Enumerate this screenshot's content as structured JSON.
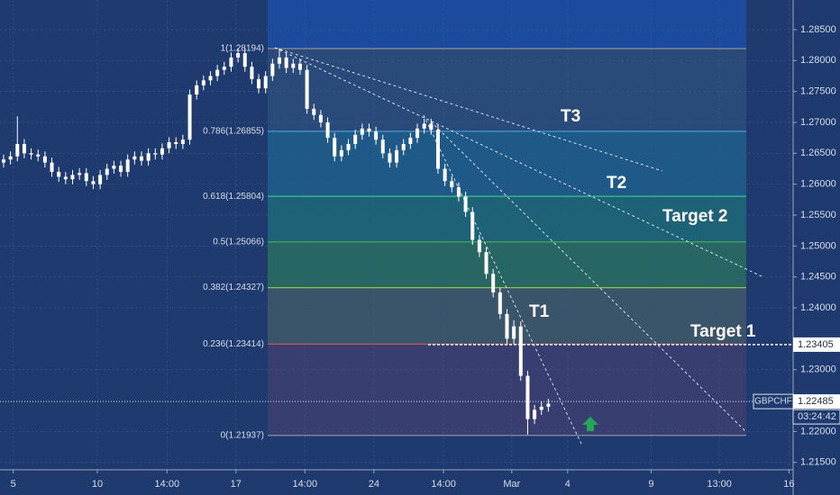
{
  "chart_data": {
    "type": "candlestick",
    "symbol": "GBPCHF",
    "countdown": "03:24:42",
    "candle_color": "#ffffff",
    "open": [
      1.2635,
      1.264,
      1.2645,
      1.2665,
      1.265,
      1.2648,
      1.2645,
      1.2635,
      1.262,
      1.2612,
      1.2608,
      1.2615,
      1.2618,
      1.2605,
      1.26,
      1.2615,
      1.2625,
      1.263,
      1.262,
      1.264,
      1.2645,
      1.2638,
      1.265,
      1.2648,
      1.2658,
      1.2668,
      1.2665,
      1.2672,
      1.2745,
      1.276,
      1.2768,
      1.2775,
      1.2785,
      1.279,
      1.2805,
      1.2812,
      1.279,
      1.277,
      1.2755,
      1.2775,
      1.2795,
      1.2805,
      1.2788,
      1.2795,
      1.2785,
      1.2722,
      1.2712,
      1.27,
      1.2675,
      1.2645,
      1.2655,
      1.2665,
      1.268,
      1.269,
      1.2685,
      1.2672,
      1.265,
      1.2635,
      1.2655,
      1.2665,
      1.2675,
      1.269,
      1.2698,
      1.2688,
      1.2625,
      1.2605,
      1.2595,
      1.258,
      1.2555,
      1.251,
      1.249,
      1.2455,
      1.2425,
      1.239,
      1.235,
      1.237,
      1.229,
      1.222,
      1.2235,
      1.224
    ],
    "high": [
      1.2648,
      1.2653,
      1.271,
      1.2673,
      1.2658,
      1.2656,
      1.2653,
      1.2643,
      1.2628,
      1.262,
      1.2623,
      1.2626,
      1.2626,
      1.2613,
      1.2623,
      1.2633,
      1.2638,
      1.2638,
      1.2648,
      1.2653,
      1.2653,
      1.2658,
      1.2658,
      1.2666,
      1.2676,
      1.2676,
      1.268,
      1.2753,
      1.2768,
      1.2776,
      1.2783,
      1.2793,
      1.2798,
      1.2813,
      1.282,
      1.282,
      1.2798,
      1.2778,
      1.2783,
      1.2803,
      1.28194,
      1.2813,
      1.2803,
      1.2803,
      1.2793,
      1.273,
      1.272,
      1.2708,
      1.2683,
      1.2663,
      1.2673,
      1.2688,
      1.2698,
      1.2698,
      1.2693,
      1.268,
      1.2658,
      1.2663,
      1.2673,
      1.2683,
      1.2698,
      1.2706,
      1.2706,
      1.2696,
      1.2633,
      1.2613,
      1.2603,
      1.2588,
      1.2563,
      1.2518,
      1.2498,
      1.2463,
      1.2433,
      1.2398,
      1.238,
      1.2378,
      1.2298,
      1.2243,
      1.2248,
      1.2253
    ],
    "low": [
      1.2627,
      1.2632,
      1.2637,
      1.2642,
      1.264,
      1.2637,
      1.2627,
      1.2612,
      1.2604,
      1.26,
      1.26,
      1.2607,
      1.2597,
      1.2592,
      1.2592,
      1.2607,
      1.2617,
      1.2612,
      1.2612,
      1.2632,
      1.263,
      1.263,
      1.264,
      1.264,
      1.265,
      1.2657,
      1.2657,
      1.2664,
      1.2737,
      1.2752,
      1.276,
      1.2767,
      1.2777,
      1.2782,
      1.2797,
      1.2782,
      1.2762,
      1.2747,
      1.2747,
      1.2767,
      1.2787,
      1.278,
      1.278,
      1.2777,
      1.2714,
      1.2704,
      1.2692,
      1.2667,
      1.2637,
      1.2637,
      1.2647,
      1.2657,
      1.2672,
      1.2677,
      1.2664,
      1.2642,
      1.2627,
      1.2627,
      1.2647,
      1.2657,
      1.2667,
      1.2682,
      1.268,
      1.2617,
      1.2597,
      1.2587,
      1.2572,
      1.2547,
      1.2502,
      1.2482,
      1.2447,
      1.2417,
      1.2382,
      1.2342,
      1.2342,
      1.2282,
      1.2195,
      1.2212,
      1.2227,
      1.2232
    ],
    "close": [
      1.264,
      1.2645,
      1.2665,
      1.265,
      1.2648,
      1.2645,
      1.2635,
      1.262,
      1.2612,
      1.2608,
      1.2615,
      1.2618,
      1.2605,
      1.26,
      1.2615,
      1.2625,
      1.263,
      1.262,
      1.264,
      1.2645,
      1.2638,
      1.265,
      1.2648,
      1.2658,
      1.2668,
      1.2665,
      1.2672,
      1.2745,
      1.276,
      1.2768,
      1.2775,
      1.2785,
      1.279,
      1.2805,
      1.2812,
      1.279,
      1.277,
      1.2755,
      1.2775,
      1.2795,
      1.2805,
      1.2788,
      1.2795,
      1.2785,
      1.2722,
      1.2712,
      1.27,
      1.2675,
      1.2645,
      1.2655,
      1.2665,
      1.268,
      1.269,
      1.2685,
      1.2672,
      1.265,
      1.2635,
      1.2655,
      1.2665,
      1.2675,
      1.269,
      1.2698,
      1.2688,
      1.2625,
      1.2605,
      1.2595,
      1.258,
      1.2555,
      1.251,
      1.249,
      1.2455,
      1.2425,
      1.239,
      1.235,
      1.237,
      1.229,
      1.222,
      1.2235,
      1.224,
      1.2245
    ],
    "xlim": [
      -0.52,
      114.5
    ],
    "xticks": [
      {
        "value": 1.4,
        "label": "5"
      },
      {
        "value": 13.6,
        "label": "10"
      },
      {
        "value": 23.7,
        "label": "14:00"
      },
      {
        "value": 33.7,
        "label": "17"
      },
      {
        "value": 43.7,
        "label": "14:00"
      },
      {
        "value": 53.7,
        "label": "24"
      },
      {
        "value": 63.8,
        "label": "14:00"
      },
      {
        "value": 73.7,
        "label": "Mar"
      },
      {
        "value": 81.8,
        "label": "4"
      },
      {
        "value": 93.9,
        "label": "9"
      },
      {
        "value": 103.8,
        "label": "13:00"
      },
      {
        "value": 113.9,
        "label": "16"
      }
    ],
    "ylim": [
      1.2138,
      1.2898
    ],
    "yticks": [
      {
        "value": 1.215,
        "label": "1.21500"
      },
      {
        "value": 1.22,
        "label": "1.22000"
      },
      {
        "value": 1.23,
        "label": "1.23000"
      },
      {
        "value": 1.24,
        "label": "1.24000"
      },
      {
        "value": 1.245,
        "label": "1.24500"
      },
      {
        "value": 1.25,
        "label": "1.25000"
      },
      {
        "value": 1.255,
        "label": "1.25500"
      },
      {
        "value": 1.26,
        "label": "1.26000"
      },
      {
        "value": 1.265,
        "label": "1.26500"
      },
      {
        "value": 1.27,
        "label": "1.27000"
      },
      {
        "value": 1.275,
        "label": "1.27500"
      },
      {
        "value": 1.28,
        "label": "1.28000"
      },
      {
        "value": 1.285,
        "label": "1.28500"
      }
    ],
    "grid": true,
    "fib_levels": [
      {
        "value": 1.28194,
        "label": "1(1.28194)",
        "color": "#8a8f9c"
      },
      {
        "value": 1.26855,
        "label": "0.786(1.26855)",
        "color": "#4a9fe0"
      },
      {
        "value": 1.25804,
        "label": "0.618(1.25804)",
        "color": "#3fbf8f"
      },
      {
        "value": 1.25066,
        "label": "0.5(1.25066)",
        "color": "#4caf50"
      },
      {
        "value": 1.24327,
        "label": "0.382(1.24327)",
        "color": "#8bc34a"
      },
      {
        "value": 1.23414,
        "label": "0.236(1.23414)",
        "color": "#d9534f"
      },
      {
        "value": 1.21937,
        "label": "0(1.21937)",
        "color": "#8a8f9c"
      }
    ],
    "target_line": {
      "value": 1.23405,
      "label": "1.23405"
    },
    "last_price": {
      "value": 1.22485,
      "label": "1.22485"
    },
    "annotations": [
      "T3",
      "T2",
      "Target 2",
      "T1",
      "Target 1"
    ]
  }
}
